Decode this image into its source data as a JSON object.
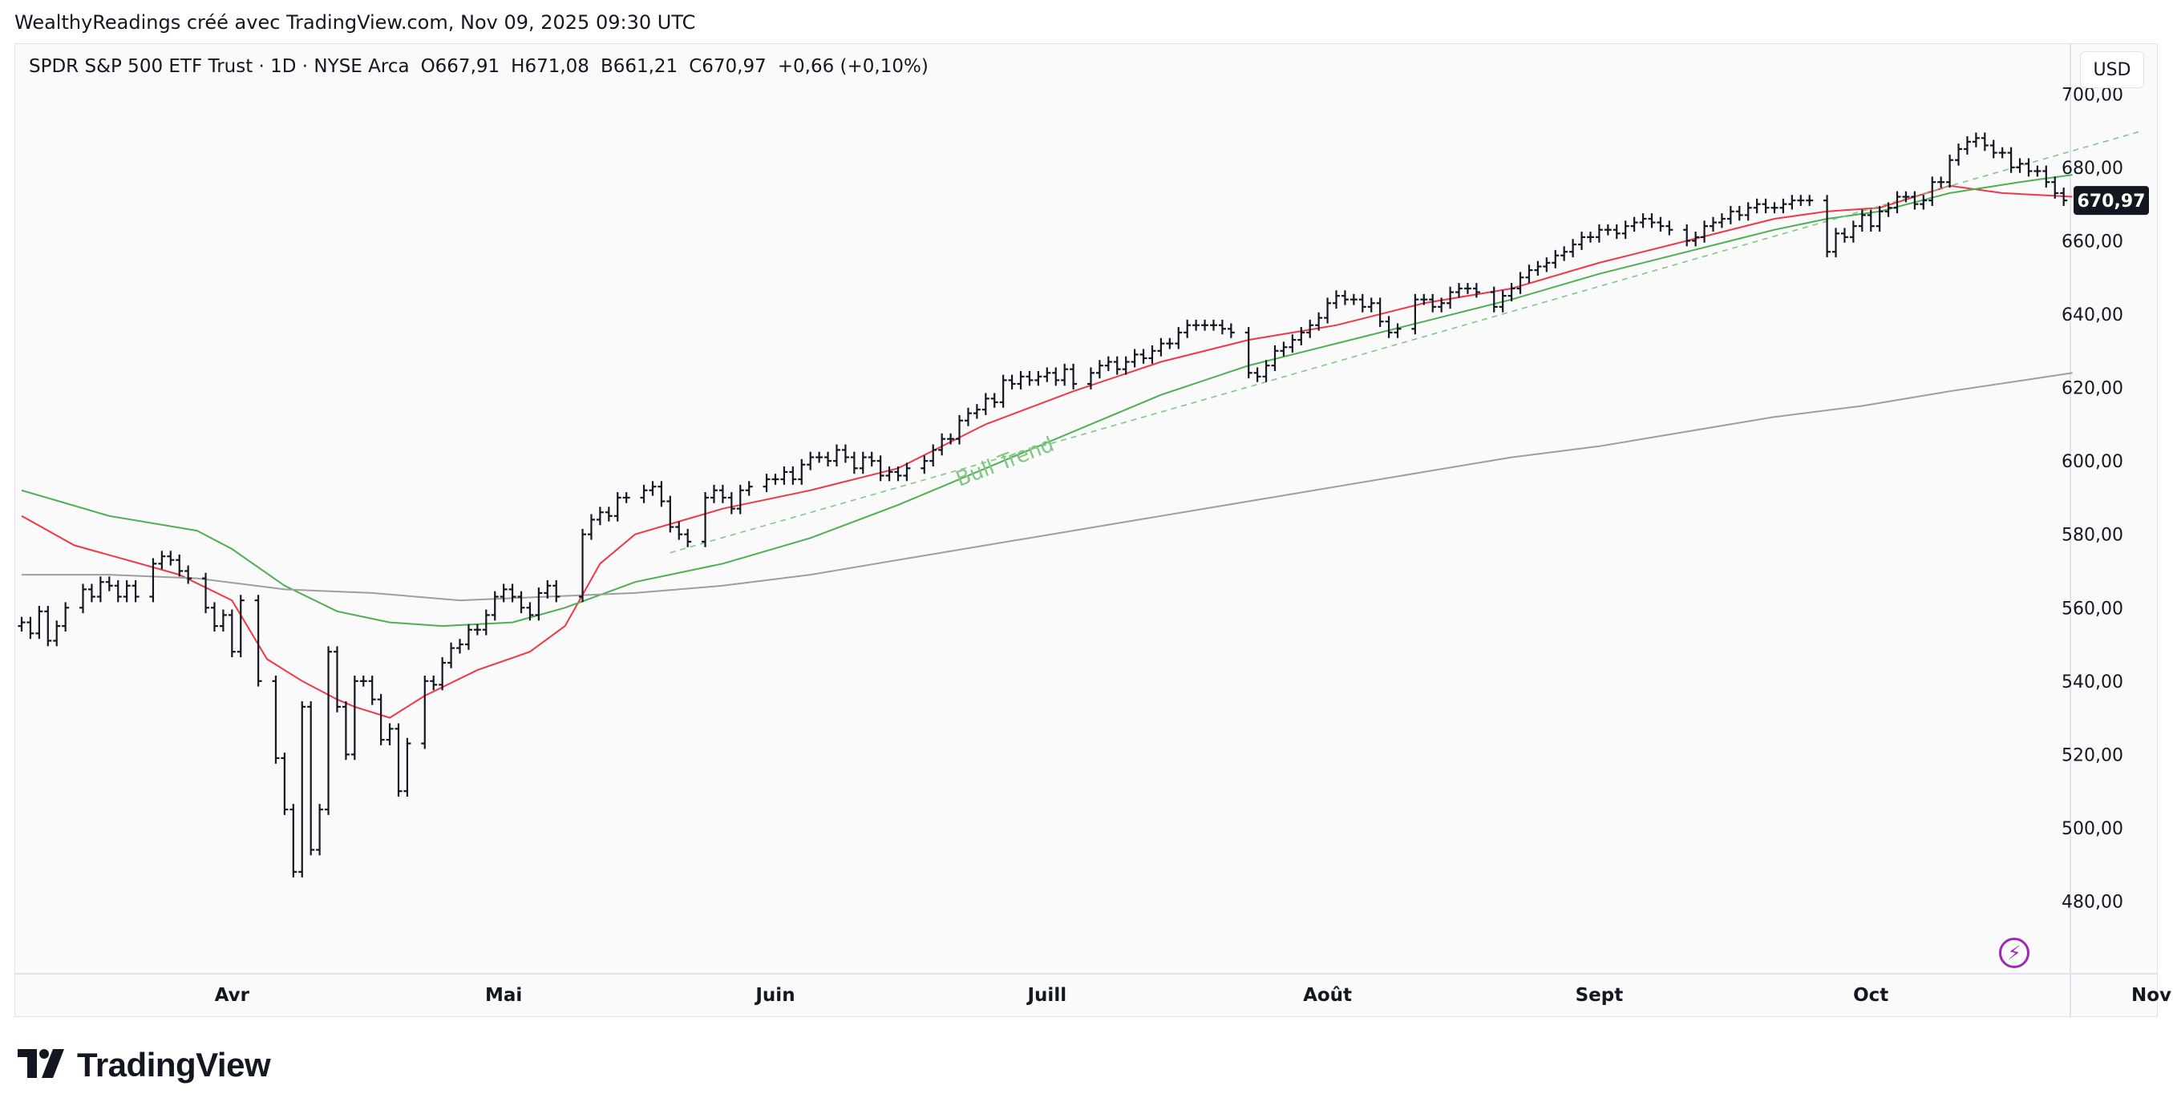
{
  "header": {
    "attribution": "WealthyReadings créé avec TradingView.com, Nov 09, 2025 09:30 UTC"
  },
  "legend": {
    "symbol": "SPDR S&P 500 ETF Trust · 1D · NYSE Arca",
    "open": "O667,91",
    "high": "H671,08",
    "low": "B661,21",
    "close": "C670,97",
    "change": "+0,66 (+0,10%)"
  },
  "currency_button": "USD",
  "price_tag": "670,97",
  "brand": "TradingView",
  "colors": {
    "bars": "#131722",
    "ma_fast": "#f23645",
    "ma_mid": "#4caf50",
    "ma_slow": "#9e9e9e",
    "trendline": "#81c784",
    "price_tag_bg": "#131722"
  },
  "chart_data": {
    "type": "ohlc",
    "title": "SPDR S&P 500 ETF Trust · 1D · NYSE Arca",
    "ylim": [
      460,
      708
    ],
    "y_ticks": [
      "700,00",
      "680,00",
      "660,00",
      "640,00",
      "620,00",
      "600,00",
      "580,00",
      "560,00",
      "540,00",
      "520,00",
      "500,00",
      "480,00"
    ],
    "y_tick_values": [
      700,
      680,
      660,
      640,
      620,
      600,
      580,
      560,
      540,
      520,
      500,
      480
    ],
    "x_tick_labels": [
      "Avr",
      "Mai",
      "Juin",
      "Juill",
      "Août",
      "Sept",
      "Oct",
      "Nov"
    ],
    "x_tick_days": [
      24,
      55,
      86,
      117,
      149,
      180,
      211,
      243
    ],
    "first_day": "2025-03-08",
    "grid": false,
    "annotation": {
      "text": "Bull Trend",
      "day": 107,
      "value": 593
    },
    "closes": [
      [
        0,
        556
      ],
      [
        1,
        553
      ],
      [
        2,
        559
      ],
      [
        3,
        551
      ],
      [
        4,
        555
      ],
      [
        5,
        560
      ],
      [
        7,
        565
      ],
      [
        8,
        563
      ],
      [
        9,
        567
      ],
      [
        10,
        566
      ],
      [
        11,
        563
      ],
      [
        12,
        566
      ],
      [
        13,
        563
      ],
      [
        15,
        572
      ],
      [
        16,
        574
      ],
      [
        17,
        573
      ],
      [
        18,
        570
      ],
      [
        19,
        568
      ],
      [
        21,
        560
      ],
      [
        22,
        555
      ],
      [
        23,
        558
      ],
      [
        24,
        548
      ],
      [
        25,
        562
      ],
      [
        27,
        540
      ],
      [
        29,
        519
      ],
      [
        30,
        505
      ],
      [
        31,
        488
      ],
      [
        32,
        533
      ],
      [
        33,
        494
      ],
      [
        34,
        505
      ],
      [
        35,
        548
      ],
      [
        36,
        533
      ],
      [
        37,
        520
      ],
      [
        38,
        540
      ],
      [
        39,
        540
      ],
      [
        40,
        535
      ],
      [
        41,
        524
      ],
      [
        42,
        527
      ],
      [
        43,
        510
      ],
      [
        44,
        523
      ],
      [
        46,
        540
      ],
      [
        47,
        539
      ],
      [
        48,
        545
      ],
      [
        49,
        549
      ],
      [
        50,
        550
      ],
      [
        51,
        554
      ],
      [
        52,
        554
      ],
      [
        53,
        558
      ],
      [
        54,
        563
      ],
      [
        55,
        565
      ],
      [
        56,
        563
      ],
      [
        57,
        560
      ],
      [
        58,
        558
      ],
      [
        59,
        564
      ],
      [
        60,
        566
      ],
      [
        61,
        563
      ],
      [
        64,
        580
      ],
      [
        65,
        584
      ],
      [
        66,
        586
      ],
      [
        67,
        585
      ],
      [
        68,
        590
      ],
      [
        69,
        590
      ],
      [
        71,
        592
      ],
      [
        72,
        593
      ],
      [
        73,
        589
      ],
      [
        74,
        582
      ],
      [
        75,
        580
      ],
      [
        76,
        578
      ],
      [
        78,
        590
      ],
      [
        79,
        592
      ],
      [
        80,
        590
      ],
      [
        81,
        587
      ],
      [
        82,
        592
      ],
      [
        83,
        593
      ],
      [
        85,
        595
      ],
      [
        86,
        595
      ],
      [
        87,
        597
      ],
      [
        88,
        595
      ],
      [
        89,
        599
      ],
      [
        90,
        601
      ],
      [
        91,
        601
      ],
      [
        92,
        600
      ],
      [
        93,
        603
      ],
      [
        94,
        601
      ],
      [
        95,
        598
      ],
      [
        96,
        601
      ],
      [
        97,
        600
      ],
      [
        98,
        596
      ],
      [
        99,
        597
      ],
      [
        100,
        596
      ],
      [
        101,
        598
      ],
      [
        103,
        600
      ],
      [
        104,
        603
      ],
      [
        105,
        606
      ],
      [
        106,
        606
      ],
      [
        107,
        611
      ],
      [
        108,
        613
      ],
      [
        109,
        614
      ],
      [
        110,
        617
      ],
      [
        111,
        616
      ],
      [
        112,
        622
      ],
      [
        113,
        621
      ],
      [
        114,
        623
      ],
      [
        115,
        622
      ],
      [
        116,
        623
      ],
      [
        117,
        624
      ],
      [
        118,
        622
      ],
      [
        119,
        625
      ],
      [
        120,
        621
      ],
      [
        122,
        624
      ],
      [
        123,
        626
      ],
      [
        124,
        627
      ],
      [
        125,
        625
      ],
      [
        126,
        627
      ],
      [
        127,
        629
      ],
      [
        128,
        628
      ],
      [
        129,
        630
      ],
      [
        130,
        632
      ],
      [
        131,
        632
      ],
      [
        132,
        635
      ],
      [
        133,
        637
      ],
      [
        134,
        637
      ],
      [
        135,
        637
      ],
      [
        136,
        637
      ],
      [
        137,
        636
      ],
      [
        138,
        635
      ],
      [
        140,
        624
      ],
      [
        141,
        623
      ],
      [
        142,
        626
      ],
      [
        143,
        630
      ],
      [
        144,
        631
      ],
      [
        145,
        633
      ],
      [
        146,
        635
      ],
      [
        147,
        637
      ],
      [
        148,
        639
      ],
      [
        149,
        643
      ],
      [
        150,
        645
      ],
      [
        151,
        644
      ],
      [
        152,
        644
      ],
      [
        153,
        642
      ],
      [
        154,
        643
      ],
      [
        155,
        638
      ],
      [
        156,
        635
      ],
      [
        157,
        636
      ],
      [
        159,
        644
      ],
      [
        160,
        644
      ],
      [
        161,
        642
      ],
      [
        162,
        643
      ],
      [
        163,
        646
      ],
      [
        164,
        647
      ],
      [
        165,
        647
      ],
      [
        166,
        646
      ],
      [
        168,
        642
      ],
      [
        169,
        645
      ],
      [
        170,
        647
      ],
      [
        171,
        650
      ],
      [
        172,
        652
      ],
      [
        173,
        653
      ],
      [
        174,
        654
      ],
      [
        175,
        656
      ],
      [
        176,
        657
      ],
      [
        177,
        659
      ],
      [
        178,
        661
      ],
      [
        179,
        661
      ],
      [
        180,
        663
      ],
      [
        181,
        663
      ],
      [
        182,
        662
      ],
      [
        183,
        664
      ],
      [
        184,
        665
      ],
      [
        185,
        666
      ],
      [
        186,
        665
      ],
      [
        187,
        664
      ],
      [
        188,
        663
      ],
      [
        190,
        660
      ],
      [
        191,
        661
      ],
      [
        192,
        664
      ],
      [
        193,
        665
      ],
      [
        194,
        666
      ],
      [
        195,
        668
      ],
      [
        196,
        667
      ],
      [
        197,
        669
      ],
      [
        198,
        670
      ],
      [
        199,
        669
      ],
      [
        200,
        669
      ],
      [
        201,
        670
      ],
      [
        202,
        671
      ],
      [
        203,
        671
      ],
      [
        204,
        671
      ],
      [
        206,
        657
      ],
      [
        207,
        662
      ],
      [
        208,
        661
      ],
      [
        209,
        664
      ],
      [
        210,
        667
      ],
      [
        211,
        664
      ],
      [
        212,
        668
      ],
      [
        213,
        669
      ],
      [
        214,
        672
      ],
      [
        215,
        672
      ],
      [
        216,
        670
      ],
      [
        217,
        671
      ],
      [
        218,
        676
      ],
      [
        219,
        676
      ],
      [
        220,
        682
      ],
      [
        221,
        685
      ],
      [
        222,
        687
      ],
      [
        223,
        688
      ],
      [
        224,
        686
      ],
      [
        225,
        684
      ],
      [
        226,
        684
      ],
      [
        227,
        680
      ],
      [
        228,
        681
      ],
      [
        229,
        679
      ],
      [
        230,
        679
      ],
      [
        231,
        676
      ],
      [
        232,
        673
      ],
      [
        233,
        671
      ]
    ],
    "series": [
      {
        "name": "",
        "kind": "ma",
        "color": "#f23645",
        "points": [
          [
            0,
            585
          ],
          [
            6,
            577
          ],
          [
            12,
            573
          ],
          [
            18,
            569
          ],
          [
            24,
            562
          ],
          [
            28,
            546
          ],
          [
            32,
            540
          ],
          [
            36,
            535
          ],
          [
            38,
            533
          ],
          [
            42,
            530
          ],
          [
            46,
            536
          ],
          [
            52,
            543
          ],
          [
            58,
            548
          ],
          [
            62,
            555
          ],
          [
            66,
            572
          ],
          [
            70,
            580
          ],
          [
            80,
            587
          ],
          [
            90,
            592
          ],
          [
            100,
            598
          ],
          [
            110,
            610
          ],
          [
            120,
            619
          ],
          [
            130,
            627
          ],
          [
            140,
            633
          ],
          [
            150,
            637
          ],
          [
            160,
            643
          ],
          [
            170,
            647
          ],
          [
            180,
            654
          ],
          [
            190,
            660
          ],
          [
            200,
            666
          ],
          [
            206,
            668
          ],
          [
            212,
            669
          ],
          [
            220,
            675
          ],
          [
            226,
            673
          ],
          [
            234,
            672
          ]
        ]
      },
      {
        "name": "",
        "kind": "ma",
        "color": "#4caf50",
        "points": [
          [
            0,
            592
          ],
          [
            10,
            585
          ],
          [
            20,
            581
          ],
          [
            24,
            576
          ],
          [
            30,
            566
          ],
          [
            36,
            559
          ],
          [
            42,
            556
          ],
          [
            48,
            555
          ],
          [
            56,
            556
          ],
          [
            62,
            560
          ],
          [
            70,
            567
          ],
          [
            80,
            572
          ],
          [
            90,
            579
          ],
          [
            100,
            588
          ],
          [
            110,
            598
          ],
          [
            120,
            608
          ],
          [
            130,
            618
          ],
          [
            140,
            626
          ],
          [
            150,
            632
          ],
          [
            160,
            638
          ],
          [
            170,
            644
          ],
          [
            180,
            651
          ],
          [
            190,
            657
          ],
          [
            200,
            663
          ],
          [
            206,
            666
          ],
          [
            212,
            668
          ],
          [
            220,
            673
          ],
          [
            228,
            676
          ],
          [
            234,
            678
          ]
        ]
      },
      {
        "name": "",
        "kind": "ma",
        "color": "#9e9e9e",
        "points": [
          [
            0,
            569
          ],
          [
            10,
            569
          ],
          [
            20,
            568
          ],
          [
            30,
            565
          ],
          [
            40,
            564
          ],
          [
            50,
            562
          ],
          [
            60,
            563
          ],
          [
            70,
            564
          ],
          [
            80,
            566
          ],
          [
            90,
            569
          ],
          [
            100,
            573
          ],
          [
            110,
            577
          ],
          [
            120,
            581
          ],
          [
            130,
            585
          ],
          [
            140,
            589
          ],
          [
            150,
            593
          ],
          [
            160,
            597
          ],
          [
            170,
            601
          ],
          [
            180,
            604
          ],
          [
            190,
            608
          ],
          [
            200,
            612
          ],
          [
            210,
            615
          ],
          [
            220,
            619
          ],
          [
            234,
            624
          ]
        ]
      },
      {
        "name": "Bull Trend",
        "kind": "trendline",
        "color": "#81c784",
        "points": [
          [
            74,
            575
          ],
          [
            242,
            690
          ]
        ]
      }
    ]
  }
}
